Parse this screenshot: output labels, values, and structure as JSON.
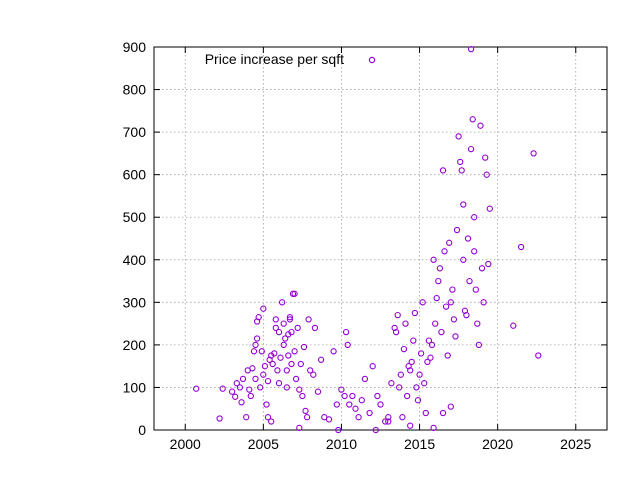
{
  "chart_data": {
    "type": "scatter",
    "title": "",
    "xlabel": "",
    "ylabel": "",
    "xlim": [
      1998,
      2027
    ],
    "ylim": [
      0,
      900
    ],
    "xticks": [
      2000,
      2005,
      2010,
      2015,
      2020,
      2025
    ],
    "yticks": [
      0,
      100,
      200,
      300,
      400,
      500,
      600,
      700,
      800,
      900
    ],
    "grid": true,
    "legend": {
      "position": "top",
      "entries": [
        "Price increase per sqft"
      ]
    },
    "marker_color": "#9400d3",
    "series": [
      {
        "name": "Price increase per sqft",
        "points": [
          [
            2000.7,
            97
          ],
          [
            2002.2,
            27
          ],
          [
            2002.4,
            97
          ],
          [
            2003.0,
            90
          ],
          [
            2003.2,
            78
          ],
          [
            2003.3,
            110
          ],
          [
            2003.5,
            100
          ],
          [
            2003.6,
            65
          ],
          [
            2003.7,
            120
          ],
          [
            2003.9,
            30
          ],
          [
            2004.0,
            140
          ],
          [
            2004.1,
            95
          ],
          [
            2004.2,
            80
          ],
          [
            2004.3,
            145
          ],
          [
            2004.4,
            185
          ],
          [
            2004.5,
            120
          ],
          [
            2004.5,
            200
          ],
          [
            2004.6,
            215
          ],
          [
            2004.6,
            255
          ],
          [
            2004.7,
            265
          ],
          [
            2004.8,
            100
          ],
          [
            2004.9,
            185
          ],
          [
            2005.0,
            285
          ],
          [
            2005.0,
            130
          ],
          [
            2005.1,
            150
          ],
          [
            2005.2,
            60
          ],
          [
            2005.3,
            30
          ],
          [
            2005.3,
            115
          ],
          [
            2005.4,
            165
          ],
          [
            2005.5,
            175
          ],
          [
            2005.6,
            155
          ],
          [
            2005.7,
            180
          ],
          [
            2005.8,
            260
          ],
          [
            2005.8,
            240
          ],
          [
            2005.9,
            140
          ],
          [
            2006.0,
            230
          ],
          [
            2006.0,
            110
          ],
          [
            2006.1,
            170
          ],
          [
            2006.2,
            300
          ],
          [
            2006.3,
            250
          ],
          [
            2006.3,
            200
          ],
          [
            2006.4,
            215
          ],
          [
            2006.5,
            140
          ],
          [
            2006.5,
            100
          ],
          [
            2006.6,
            225
          ],
          [
            2006.6,
            175
          ],
          [
            2006.7,
            265
          ],
          [
            2006.7,
            260
          ],
          [
            2006.8,
            230
          ],
          [
            2006.8,
            155
          ],
          [
            2006.9,
            320
          ],
          [
            2007.0,
            320
          ],
          [
            2007.0,
            185
          ],
          [
            2007.1,
            120
          ],
          [
            2007.2,
            240
          ],
          [
            2007.3,
            95
          ],
          [
            2007.4,
            155
          ],
          [
            2007.5,
            80
          ],
          [
            2007.6,
            195
          ],
          [
            2007.7,
            45
          ],
          [
            2007.8,
            30
          ],
          [
            2007.9,
            260
          ],
          [
            2008.0,
            140
          ],
          [
            2008.2,
            130
          ],
          [
            2008.3,
            240
          ],
          [
            2008.5,
            90
          ],
          [
            2008.7,
            165
          ],
          [
            2008.9,
            30
          ],
          [
            2009.2,
            25
          ],
          [
            2009.5,
            185
          ],
          [
            2009.7,
            60
          ],
          [
            2010.0,
            95
          ],
          [
            2010.2,
            80
          ],
          [
            2010.3,
            230
          ],
          [
            2010.4,
            200
          ],
          [
            2010.5,
            60
          ],
          [
            2010.7,
            80
          ],
          [
            2010.9,
            50
          ],
          [
            2011.1,
            30
          ],
          [
            2011.3,
            70
          ],
          [
            2011.5,
            120
          ],
          [
            2011.8,
            40
          ],
          [
            2012.0,
            150
          ],
          [
            2012.3,
            80
          ],
          [
            2012.5,
            60
          ],
          [
            2012.8,
            20
          ],
          [
            2013.0,
            20
          ],
          [
            2013.2,
            110
          ],
          [
            2013.4,
            240
          ],
          [
            2013.5,
            230
          ],
          [
            2013.6,
            270
          ],
          [
            2013.7,
            100
          ],
          [
            2013.8,
            130
          ],
          [
            2013.9,
            30
          ],
          [
            2014.0,
            190
          ],
          [
            2014.1,
            250
          ],
          [
            2014.2,
            80
          ],
          [
            2014.3,
            150
          ],
          [
            2014.4,
            140
          ],
          [
            2014.5,
            160
          ],
          [
            2014.6,
            210
          ],
          [
            2014.7,
            275
          ],
          [
            2014.8,
            100
          ],
          [
            2014.9,
            70
          ],
          [
            2015.0,
            130
          ],
          [
            2015.1,
            180
          ],
          [
            2015.2,
            300
          ],
          [
            2015.3,
            110
          ],
          [
            2015.4,
            40
          ],
          [
            2015.5,
            160
          ],
          [
            2015.6,
            210
          ],
          [
            2015.7,
            170
          ],
          [
            2015.8,
            200
          ],
          [
            2015.9,
            400
          ],
          [
            2016.0,
            250
          ],
          [
            2016.1,
            310
          ],
          [
            2016.2,
            350
          ],
          [
            2016.3,
            380
          ],
          [
            2016.4,
            230
          ],
          [
            2016.5,
            610
          ],
          [
            2016.6,
            420
          ],
          [
            2016.7,
            290
          ],
          [
            2016.8,
            175
          ],
          [
            2016.9,
            440
          ],
          [
            2017.0,
            300
          ],
          [
            2017.1,
            330
          ],
          [
            2017.2,
            260
          ],
          [
            2017.3,
            220
          ],
          [
            2017.4,
            470
          ],
          [
            2017.5,
            690
          ],
          [
            2017.6,
            630
          ],
          [
            2017.7,
            610
          ],
          [
            2017.8,
            530
          ],
          [
            2017.8,
            400
          ],
          [
            2017.9,
            280
          ],
          [
            2018.0,
            270
          ],
          [
            2018.1,
            450
          ],
          [
            2018.2,
            350
          ],
          [
            2018.3,
            660
          ],
          [
            2018.4,
            730
          ],
          [
            2018.5,
            500
          ],
          [
            2018.5,
            420
          ],
          [
            2018.6,
            330
          ],
          [
            2018.7,
            250
          ],
          [
            2018.8,
            200
          ],
          [
            2018.9,
            715
          ],
          [
            2019.0,
            380
          ],
          [
            2019.1,
            300
          ],
          [
            2019.2,
            640
          ],
          [
            2019.3,
            600
          ],
          [
            2019.4,
            390
          ],
          [
            2019.5,
            520
          ],
          [
            2018.3,
            895
          ],
          [
            2021.0,
            245
          ],
          [
            2021.5,
            430
          ],
          [
            2022.3,
            650
          ],
          [
            2022.6,
            175
          ],
          [
            2013.0,
            30
          ],
          [
            2014.4,
            10
          ],
          [
            2015.9,
            5
          ],
          [
            2016.5,
            40
          ],
          [
            2017.0,
            55
          ],
          [
            2005.5,
            20
          ],
          [
            2007.3,
            5
          ],
          [
            2009.8,
            0
          ],
          [
            2012.2,
            0
          ]
        ]
      }
    ]
  }
}
